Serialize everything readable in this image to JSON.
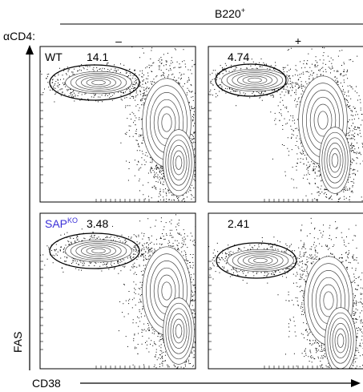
{
  "header": {
    "population": {
      "text": "B220",
      "superscript": "+"
    }
  },
  "treatment": {
    "label": "αCD4:",
    "columns": [
      "–",
      "+"
    ]
  },
  "panels": [
    {
      "genotype": {
        "text": "WT"
      },
      "gate": 14.1
    },
    {
      "gate": 4.74
    },
    {
      "genotype": {
        "text": "SAP",
        "superscript": "KO"
      },
      "gate": 3.48
    },
    {
      "gate": 2.41
    }
  ],
  "axes": {
    "y": "FAS",
    "x": "CD38"
  }
}
